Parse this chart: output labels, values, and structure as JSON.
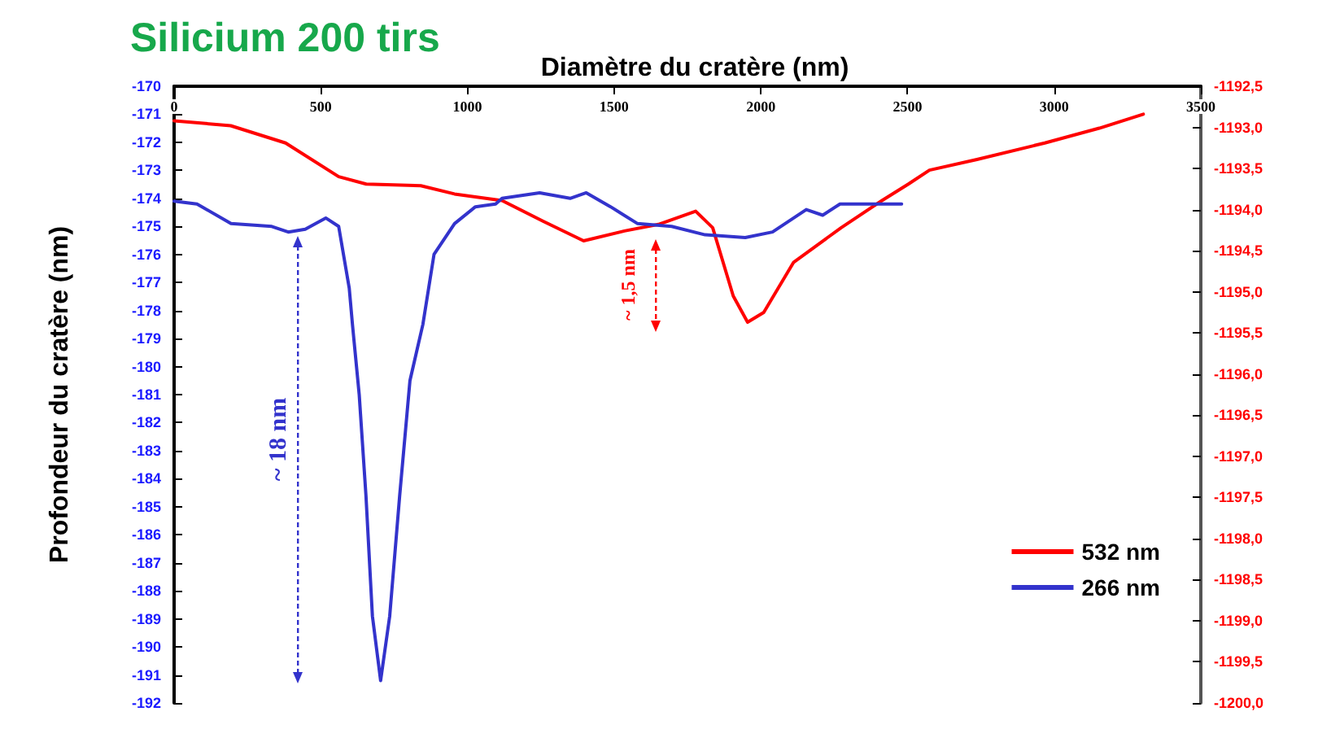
{
  "chart_data": {
    "type": "line",
    "title": "Silicium 200 tirs",
    "xlabel": "Diamètre du cratère (nm)",
    "ylabel": "Profondeur du cratère (nm)",
    "xlim": [
      0,
      3500
    ],
    "xticks": [
      0,
      500,
      1000,
      1500,
      2000,
      2500,
      3000,
      3500
    ],
    "ylim": [
      -192,
      -170
    ],
    "yticks": [
      -192,
      -191,
      -190,
      -189,
      -188,
      -187,
      -186,
      -185,
      -184,
      -183,
      -182,
      -181,
      -180,
      -179,
      -178,
      -177,
      -176,
      -175,
      -174,
      -173,
      -172,
      -171,
      -170
    ],
    "y2lim": [
      -1200,
      -1192.5
    ],
    "y2ticks": [
      {
        "value": -1200,
        "label": "-1200,0"
      },
      {
        "value": -1199.5,
        "label": "-1199,5"
      },
      {
        "value": -1199,
        "label": "-1199,0"
      },
      {
        "value": -1198.5,
        "label": "-1198,5"
      },
      {
        "value": -1198,
        "label": "-1198,0"
      },
      {
        "value": -1197.5,
        "label": "-1197,5"
      },
      {
        "value": -1197,
        "label": "-1197,0"
      },
      {
        "value": -1196.5,
        "label": "-1196,5"
      },
      {
        "value": -1196,
        "label": "-1196,0"
      },
      {
        "value": -1195.5,
        "label": "-1195,5"
      },
      {
        "value": -1195,
        "label": "-1195,0"
      },
      {
        "value": -1194.5,
        "label": "-1194,5"
      },
      {
        "value": -1194,
        "label": "-1194,0"
      },
      {
        "value": -1193.5,
        "label": "-1193,5"
      },
      {
        "value": -1193,
        "label": "-1193,0"
      },
      {
        "value": -1192.5,
        "label": "-1192,5"
      }
    ],
    "series": [
      {
        "name": "532 nm",
        "color": "#ff0000",
        "axis": "y2",
        "x": [
          0,
          193,
          380,
          561,
          655,
          841,
          956,
          1118,
          1257,
          1396,
          1535,
          1651,
          1778,
          1836,
          1906,
          1955,
          2010,
          2112,
          2274,
          2413,
          2503,
          2575,
          2737,
          2968,
          3154,
          3304
        ],
        "values": [
          -1192.92,
          -1192.98,
          -1193.19,
          -1193.6,
          -1193.69,
          -1193.71,
          -1193.81,
          -1193.89,
          -1194.14,
          -1194.38,
          -1194.26,
          -1194.18,
          -1194.02,
          -1194.22,
          -1195.05,
          -1195.37,
          -1195.25,
          -1194.64,
          -1194.22,
          -1193.89,
          -1193.69,
          -1193.52,
          -1193.39,
          -1193.19,
          -1193.01,
          -1192.84
        ]
      },
      {
        "name": "266 nm",
        "color": "#3333cc",
        "x": [
          0,
          78,
          194,
          333,
          389,
          447,
          517,
          561,
          597,
          608,
          631,
          654,
          676,
          704,
          735,
          769,
          804,
          826,
          848,
          886,
          956,
          1027,
          1096,
          1118,
          1246,
          1350,
          1405,
          1488,
          1580,
          1696,
          1810,
          1947,
          2040,
          2155,
          2211,
          2270,
          2480
        ],
        "values": [
          -174.1,
          -174.2,
          -174.9,
          -175.0,
          -175.2,
          -175.1,
          -174.7,
          -175.0,
          -177.2,
          -178.5,
          -181.0,
          -184.6,
          -188.9,
          -191.2,
          -188.9,
          -184.6,
          -180.5,
          -179.5,
          -178.5,
          -176.0,
          -174.9,
          -174.3,
          -174.2,
          -174.0,
          -173.8,
          -174.0,
          -173.8,
          -174.3,
          -174.9,
          -175.0,
          -175.3,
          -175.4,
          -175.2,
          -174.4,
          -174.6,
          -174.2,
          -174.2
        ]
      }
    ],
    "annotations": [
      "~ 1,5 nm",
      "~ 18 nm"
    ],
    "legend": "bottom right",
    "grid": false,
    "marker": "none",
    "line_style": "solid"
  }
}
